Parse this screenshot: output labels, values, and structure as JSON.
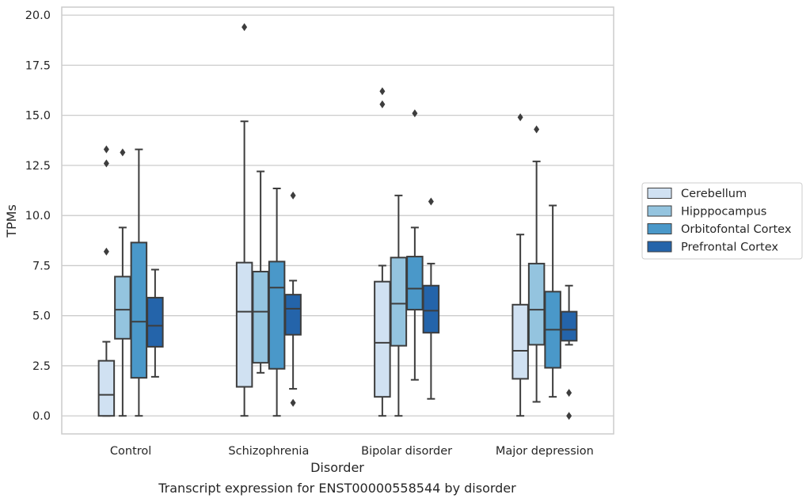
{
  "chart_data": {
    "type": "box",
    "xlabel": "Disorder",
    "ylabel": "TPMs",
    "caption": "Transcript expression for ENST00000558544 by disorder",
    "ylim": [
      -0.9,
      20.4
    ],
    "yticks": [
      "0.0",
      "2.5",
      "5.0",
      "7.5",
      "10.0",
      "12.5",
      "15.0",
      "17.5",
      "20.0"
    ],
    "grid": "horizontal",
    "legend_position": "right",
    "categories": [
      "Control",
      "Schizophrenia",
      "Bipolar disorder",
      "Major depression"
    ],
    "series": [
      {
        "name": "Cerebellum",
        "color": "#d0e1f2",
        "boxes": [
          {
            "whislo": 0.0,
            "q1": 0.0,
            "med": 1.05,
            "q3": 2.75,
            "whishi": 3.7,
            "fliers": [
              8.2,
              12.6,
              13.3
            ]
          },
          {
            "whislo": 0.0,
            "q1": 1.45,
            "med": 5.2,
            "q3": 7.65,
            "whishi": 14.7,
            "fliers": [
              19.4
            ]
          },
          {
            "whislo": 0.0,
            "q1": 0.95,
            "med": 3.65,
            "q3": 6.7,
            "whishi": 7.5,
            "fliers": [
              15.55,
              16.2
            ]
          },
          {
            "whislo": 0.0,
            "q1": 1.85,
            "med": 3.25,
            "q3": 5.55,
            "whishi": 9.05,
            "fliers": [
              14.9
            ]
          }
        ]
      },
      {
        "name": "Hipppocampus",
        "color": "#94c4df",
        "boxes": [
          {
            "whislo": 0.0,
            "q1": 3.85,
            "med": 5.3,
            "q3": 6.95,
            "whishi": 9.4,
            "fliers": [
              13.15
            ]
          },
          {
            "whislo": 2.15,
            "q1": 2.65,
            "med": 5.2,
            "q3": 7.2,
            "whishi": 12.2,
            "fliers": []
          },
          {
            "whislo": 0.0,
            "q1": 3.5,
            "med": 5.6,
            "q3": 7.9,
            "whishi": 11.0,
            "fliers": []
          },
          {
            "whislo": 0.7,
            "q1": 3.55,
            "med": 5.3,
            "q3": 7.6,
            "whishi": 12.7,
            "fliers": [
              14.3
            ]
          }
        ]
      },
      {
        "name": "Orbitofontal Cortex",
        "color": "#4a98c9",
        "boxes": [
          {
            "whislo": 0.0,
            "q1": 1.9,
            "med": 4.7,
            "q3": 8.65,
            "whishi": 13.3,
            "fliers": []
          },
          {
            "whislo": 0.0,
            "q1": 2.35,
            "med": 6.4,
            "q3": 7.7,
            "whishi": 11.35,
            "fliers": []
          },
          {
            "whislo": 1.8,
            "q1": 5.3,
            "med": 6.35,
            "q3": 7.95,
            "whishi": 9.4,
            "fliers": [
              15.1
            ]
          },
          {
            "whislo": 0.95,
            "q1": 2.4,
            "med": 4.3,
            "q3": 6.2,
            "whishi": 10.5,
            "fliers": []
          }
        ]
      },
      {
        "name": "Prefrontal Cortex",
        "color": "#2464aa",
        "boxes": [
          {
            "whislo": 1.95,
            "q1": 3.45,
            "med": 4.5,
            "q3": 5.9,
            "whishi": 7.3,
            "fliers": []
          },
          {
            "whislo": 1.35,
            "q1": 4.05,
            "med": 5.35,
            "q3": 6.05,
            "whishi": 6.75,
            "fliers": [
              0.65,
              11.0
            ]
          },
          {
            "whislo": 0.85,
            "q1": 4.15,
            "med": 5.25,
            "q3": 6.5,
            "whishi": 7.6,
            "fliers": [
              10.7
            ]
          },
          {
            "whislo": 3.55,
            "q1": 3.75,
            "med": 4.3,
            "q3": 5.2,
            "whishi": 6.5,
            "fliers": [
              0.0,
              1.15
            ]
          }
        ]
      }
    ]
  }
}
